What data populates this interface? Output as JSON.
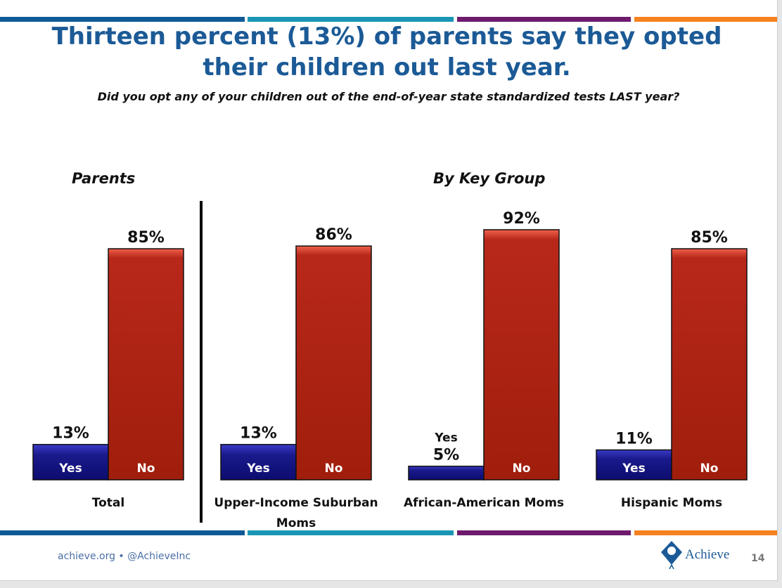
{
  "title": "Thirteen percent (13%) of parents say they opted their children out last year.",
  "subtitle": "Did you opt any of your children out of the end-of-year state standardized tests LAST year?",
  "sections": {
    "left": "Parents",
    "right": "By Key Group"
  },
  "colors": {
    "yes": "#1a1a8c",
    "no": "#a8200c",
    "stripes": [
      "#0e5a96",
      "#1a96b4",
      "#6e1a6e",
      "#f5821f"
    ]
  },
  "chart_data": {
    "type": "bar",
    "categories": [
      "Total",
      "Upper-Income Suburban Moms",
      "African-American Moms",
      "Hispanic Moms"
    ],
    "series": [
      {
        "name": "Yes",
        "values": [
          13,
          13,
          5,
          11
        ]
      },
      {
        "name": "No",
        "values": [
          85,
          86,
          92,
          85
        ]
      }
    ],
    "data_labels": {
      "Yes": [
        "13%",
        "13%",
        "5%",
        "11%"
      ],
      "No": [
        "85%",
        "86%",
        "92%",
        "85%"
      ]
    },
    "ylim": [
      0,
      100
    ],
    "grid": false
  },
  "footer": {
    "left": "achieve.org • @AchieveInc",
    "logo": "Achieve",
    "page": "14"
  }
}
